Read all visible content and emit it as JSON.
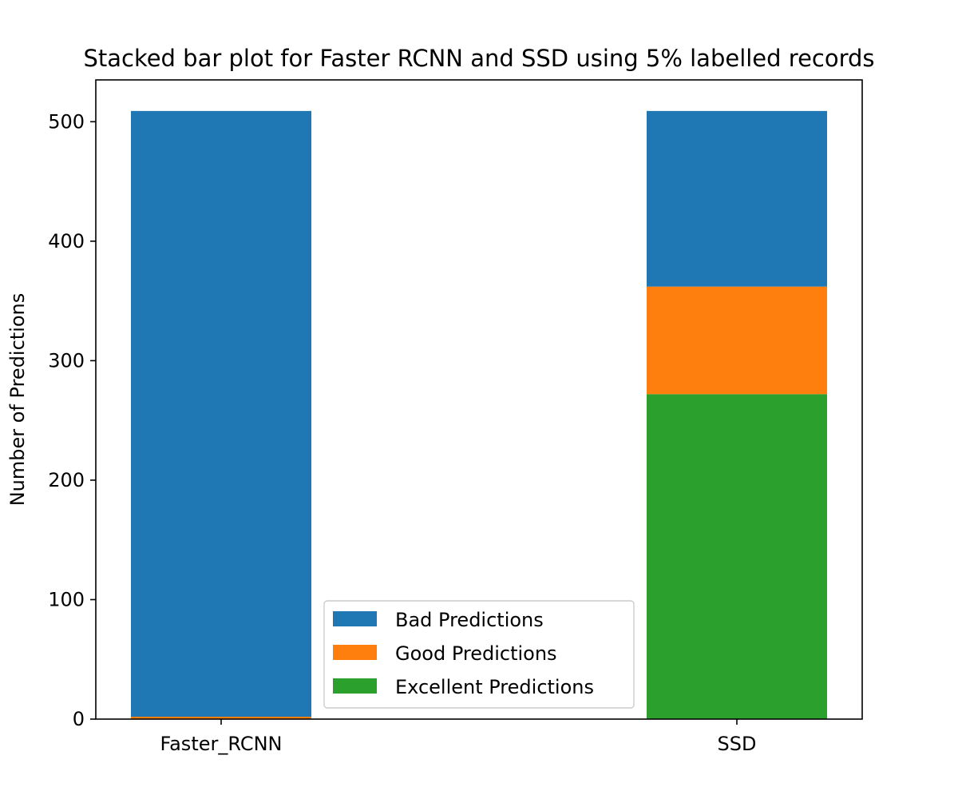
{
  "chart_data": {
    "type": "bar",
    "stacked": true,
    "title": "Stacked bar plot for Faster RCNN and SSD using 5% labelled records",
    "xlabel": "",
    "ylabel": "Number of Predictions",
    "categories": [
      "Faster_RCNN",
      "SSD"
    ],
    "series": [
      {
        "name": "Excellent Predictions",
        "color": "#2ca02c",
        "values": [
          0,
          272
        ]
      },
      {
        "name": "Good Predictions",
        "color": "#ff7f0e",
        "values": [
          2,
          90
        ]
      },
      {
        "name": "Bad Predictions",
        "color": "#1f77b4",
        "values": [
          507,
          147
        ]
      }
    ],
    "legend_order": [
      2,
      1,
      0
    ],
    "ylim": [
      0,
      535
    ],
    "yticks": [
      0,
      100,
      200,
      300,
      400,
      500
    ],
    "grid": false,
    "legend_position": "lower-center"
  }
}
